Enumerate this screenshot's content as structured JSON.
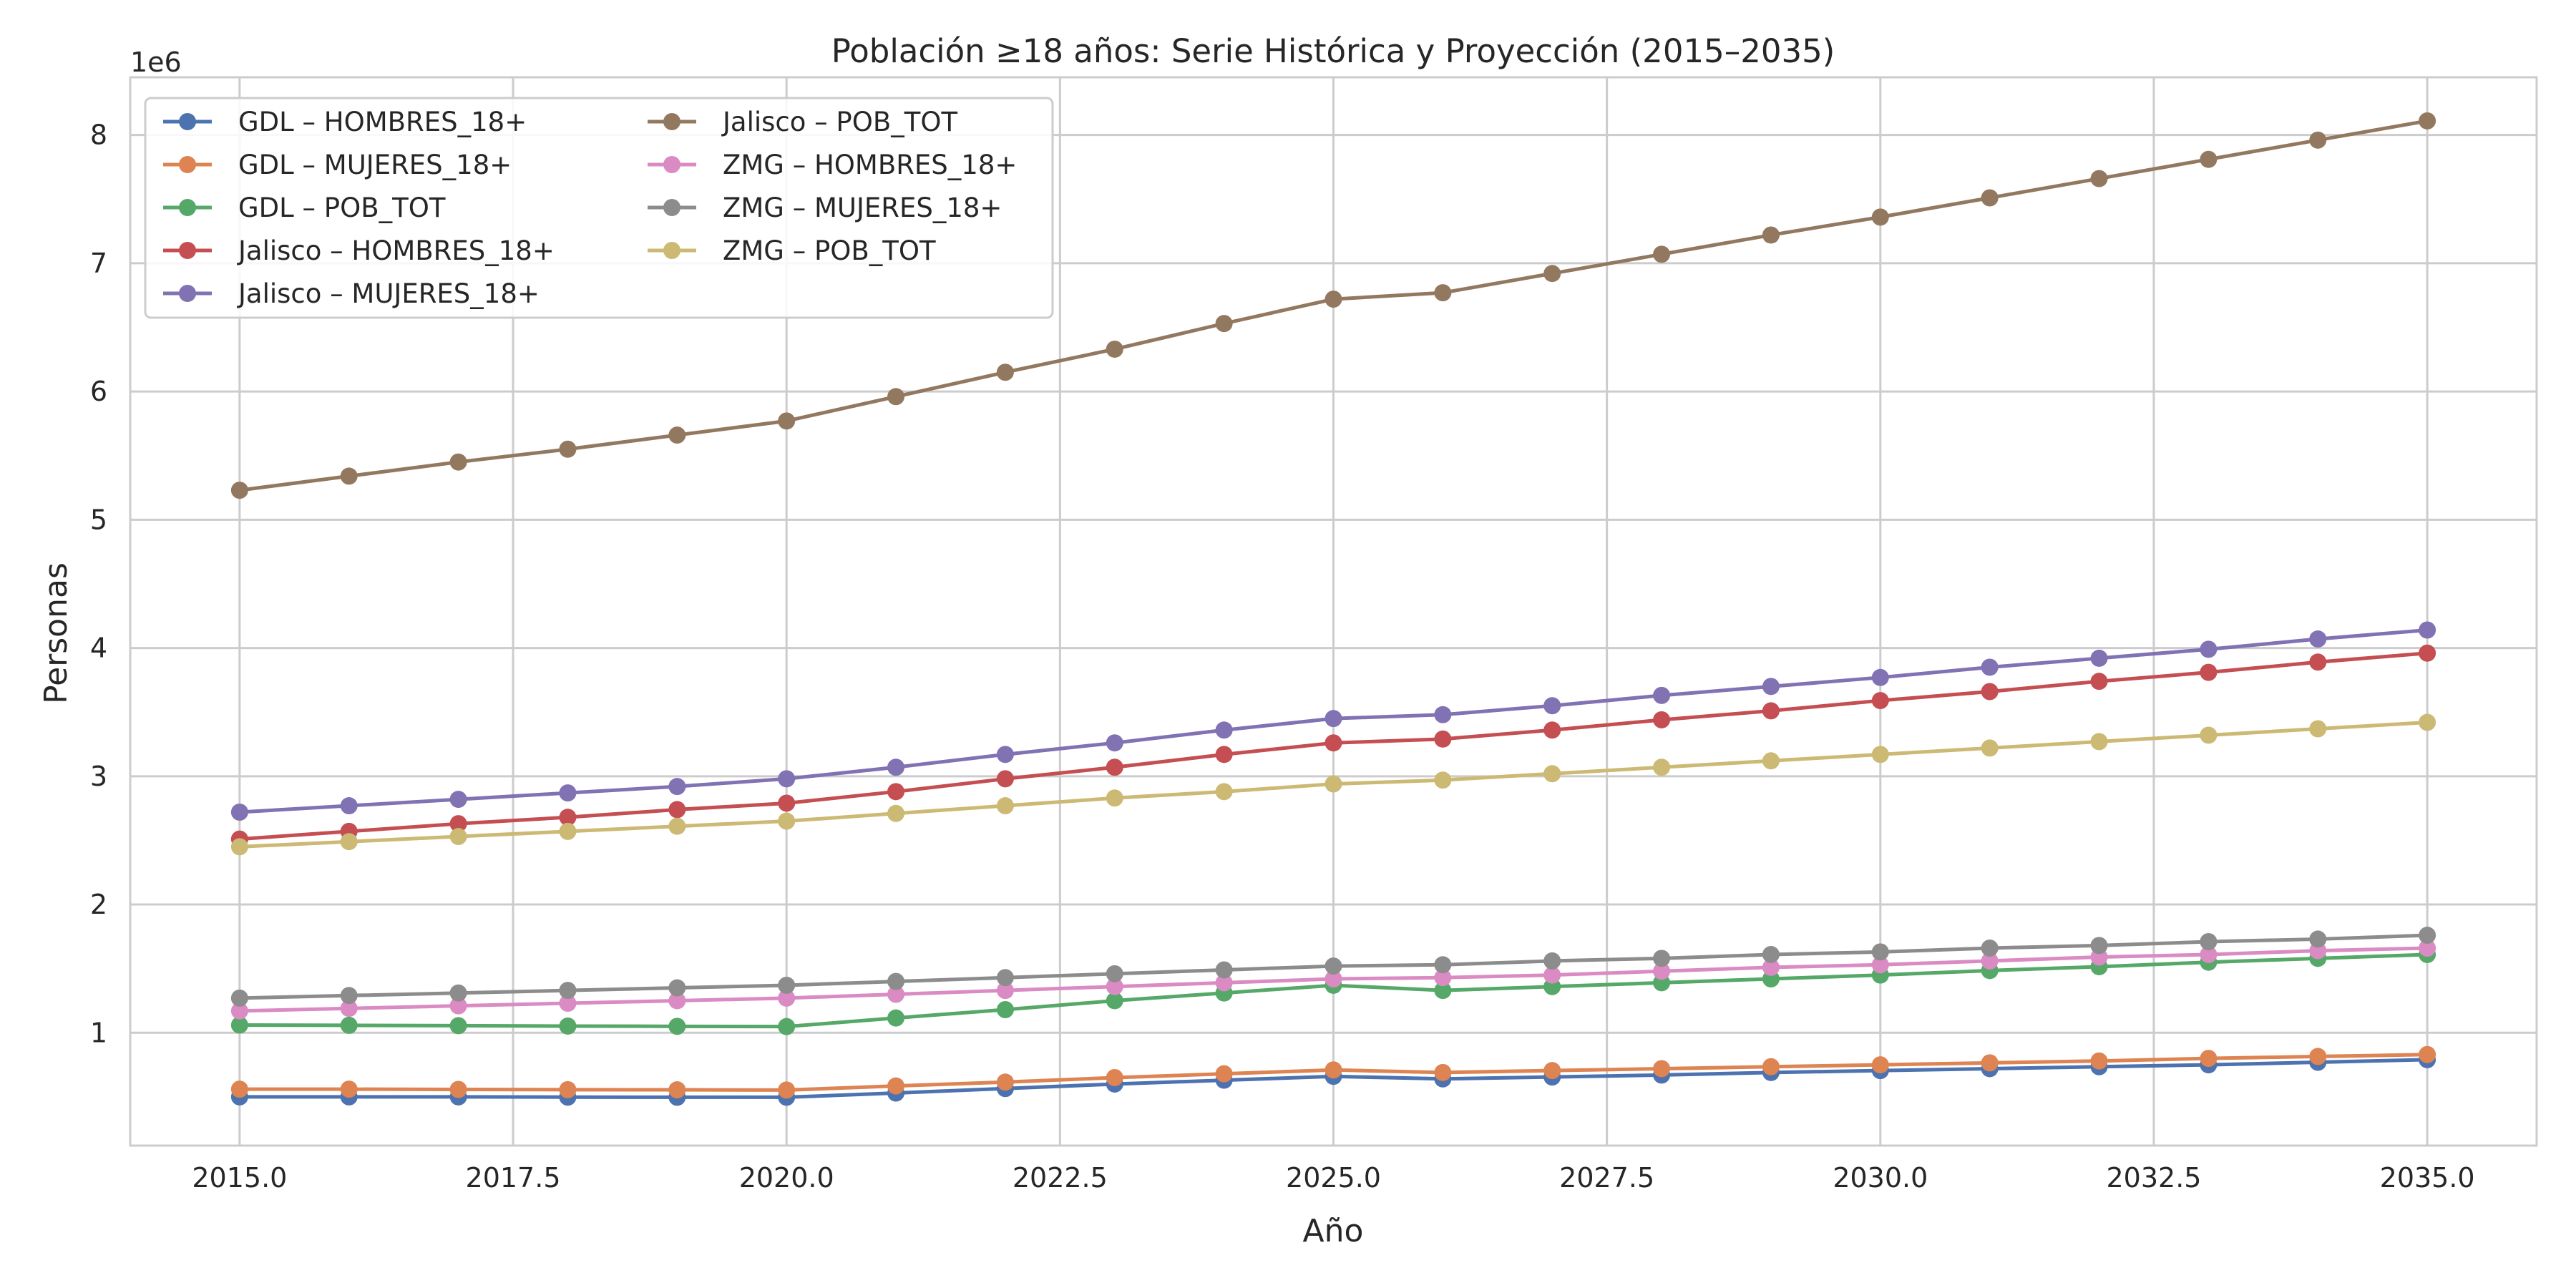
{
  "chart_data": {
    "type": "line",
    "title": "Población ≥18 años: Serie Histórica y Proyección (2015–2035)",
    "xlabel": "Año",
    "ylabel": "Personas",
    "y_offset_label": "1e6",
    "xlim": [
      2014.0,
      2036.0
    ],
    "ylim": [
      120000,
      8450000
    ],
    "x_ticks": [
      2015.0,
      2017.5,
      2020.0,
      2022.5,
      2025.0,
      2027.5,
      2030.0,
      2032.5,
      2035.0
    ],
    "x_tick_labels": [
      "2015.0",
      "2017.5",
      "2020.0",
      "2022.5",
      "2025.0",
      "2027.5",
      "2030.0",
      "2032.5",
      "2035.0"
    ],
    "y_ticks": [
      1000000,
      2000000,
      3000000,
      4000000,
      5000000,
      6000000,
      7000000,
      8000000
    ],
    "y_tick_labels": [
      "1",
      "2",
      "3",
      "4",
      "5",
      "6",
      "7",
      "8"
    ],
    "grid": true,
    "legend_position": "top-left",
    "x": [
      2015,
      2016,
      2017,
      2018,
      2019,
      2020,
      2021,
      2022,
      2023,
      2024,
      2025,
      2026,
      2027,
      2028,
      2029,
      2030,
      2031,
      2032,
      2033,
      2034,
      2035
    ],
    "series": [
      {
        "name": "GDL – HOMBRES_18+",
        "color": "#4c72b0",
        "values": [
          500000,
          500000,
          500000,
          498000,
          497000,
          497000,
          530000,
          565000,
          600000,
          630000,
          660000,
          640000,
          655000,
          670000,
          690000,
          705000,
          720000,
          735000,
          750000,
          770000,
          790000
        ]
      },
      {
        "name": "GDL – MUJERES_18+",
        "color": "#dd8452",
        "values": [
          560000,
          560000,
          558000,
          556000,
          555000,
          553000,
          585000,
          615000,
          650000,
          680000,
          710000,
          690000,
          705000,
          720000,
          735000,
          750000,
          765000,
          780000,
          800000,
          815000,
          830000
        ]
      },
      {
        "name": "GDL – POB_TOT",
        "color": "#55a868",
        "values": [
          1060000,
          1058000,
          1055000,
          1052000,
          1050000,
          1048000,
          1115000,
          1180000,
          1250000,
          1310000,
          1370000,
          1330000,
          1360000,
          1390000,
          1420000,
          1450000,
          1485000,
          1515000,
          1550000,
          1580000,
          1610000
        ]
      },
      {
        "name": "Jalisco – HOMBRES_18+",
        "color": "#c44e52",
        "values": [
          2510000,
          2570000,
          2630000,
          2680000,
          2740000,
          2790000,
          2880000,
          2980000,
          3070000,
          3170000,
          3260000,
          3290000,
          3360000,
          3440000,
          3510000,
          3590000,
          3660000,
          3740000,
          3810000,
          3890000,
          3960000
        ]
      },
      {
        "name": "Jalisco – MUJERES_18+",
        "color": "#8172b3",
        "values": [
          2720000,
          2770000,
          2820000,
          2870000,
          2920000,
          2980000,
          3070000,
          3170000,
          3260000,
          3360000,
          3450000,
          3480000,
          3550000,
          3630000,
          3700000,
          3770000,
          3850000,
          3920000,
          3990000,
          4070000,
          4140000
        ]
      },
      {
        "name": "Jalisco – POB_TOT",
        "color": "#937860",
        "values": [
          5230000,
          5340000,
          5450000,
          5550000,
          5660000,
          5770000,
          5960000,
          6150000,
          6330000,
          6530000,
          6720000,
          6770000,
          6920000,
          7070000,
          7220000,
          7360000,
          7510000,
          7660000,
          7810000,
          7960000,
          8110000
        ]
      },
      {
        "name": "ZMG – HOMBRES_18+",
        "color": "#da8bc3",
        "values": [
          1170000,
          1190000,
          1210000,
          1230000,
          1250000,
          1270000,
          1300000,
          1330000,
          1360000,
          1390000,
          1420000,
          1430000,
          1450000,
          1480000,
          1510000,
          1530000,
          1560000,
          1590000,
          1610000,
          1640000,
          1660000
        ]
      },
      {
        "name": "ZMG – MUJERES_18+",
        "color": "#8c8c8c",
        "values": [
          1270000,
          1290000,
          1310000,
          1330000,
          1350000,
          1370000,
          1400000,
          1430000,
          1460000,
          1490000,
          1520000,
          1530000,
          1560000,
          1580000,
          1610000,
          1630000,
          1660000,
          1680000,
          1710000,
          1730000,
          1760000
        ]
      },
      {
        "name": "ZMG – POB_TOT",
        "color": "#ccb974",
        "values": [
          2450000,
          2490000,
          2530000,
          2570000,
          2610000,
          2650000,
          2710000,
          2770000,
          2830000,
          2880000,
          2940000,
          2970000,
          3020000,
          3070000,
          3120000,
          3170000,
          3220000,
          3270000,
          3320000,
          3370000,
          3420000
        ]
      }
    ]
  }
}
